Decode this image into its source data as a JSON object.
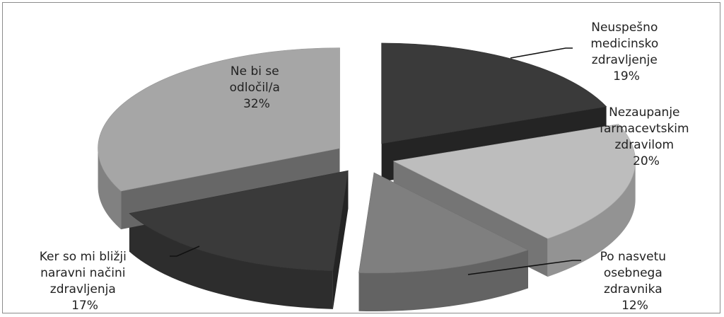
{
  "chart_data": {
    "type": "pie",
    "style": "3d-exploded",
    "legend": "none",
    "slices": [
      {
        "label_lines": [
          "Neuspešno",
          "medicinsko",
          "zdravljenje"
        ],
        "percent_label": "19%",
        "value": 19,
        "color": "#3a3a3a"
      },
      {
        "label_lines": [
          "Nezaupanje",
          "farmacevtskim",
          "zdravilom"
        ],
        "percent_label": "20%",
        "value": 20,
        "color": "#bdbdbd"
      },
      {
        "label_lines": [
          "Po nasvetu",
          "osebnega",
          "zdravnika"
        ],
        "percent_label": "12%",
        "value": 12,
        "color": "#7f7f7f"
      },
      {
        "label_lines": [
          "Ker so mi bližji",
          "naravni načini",
          "zdravljenja"
        ],
        "percent_label": "17%",
        "value": 17,
        "color": "#3a3a3a"
      },
      {
        "label_lines": [
          "Ne bi se",
          "odločil/a"
        ],
        "percent_label": "32%",
        "value": 32,
        "color": "#a6a6a6"
      }
    ]
  }
}
